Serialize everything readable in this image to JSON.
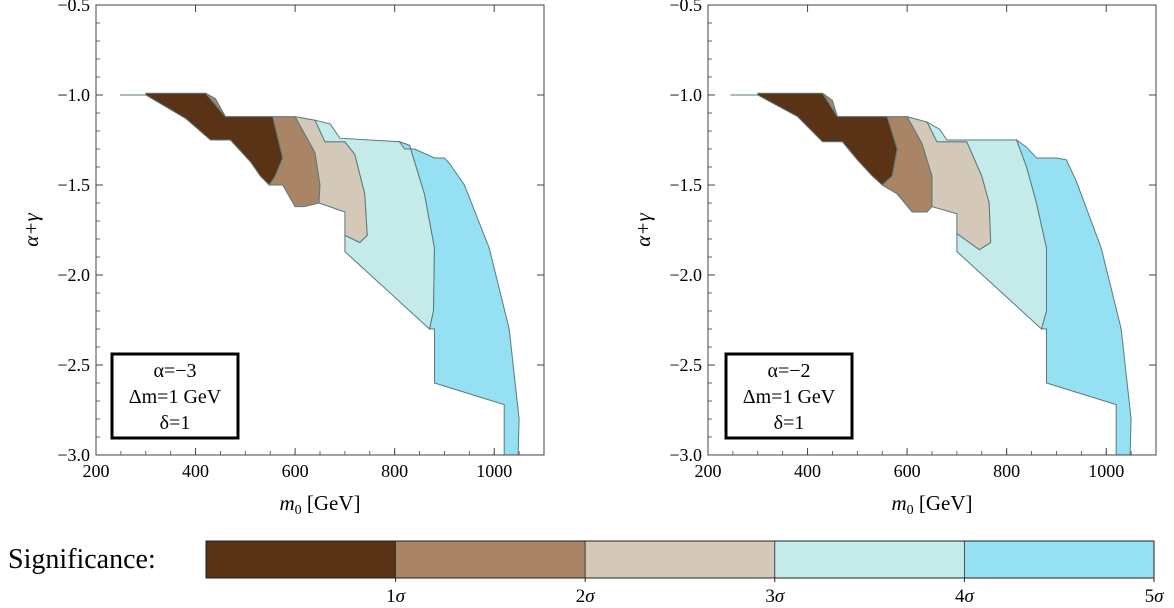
{
  "chart_data": [
    {
      "type": "area",
      "subtype": "contour",
      "xlabel": "m₀ [GeV]",
      "ylabel": "α+γ",
      "xlim": [
        200,
        1100
      ],
      "ylim": [
        -3.0,
        -0.5
      ],
      "xticks": [
        "200",
        "400",
        "600",
        "800",
        "1000"
      ],
      "yticks": [
        "−0.5",
        "−1.0",
        "−1.5",
        "−2.0",
        "−2.5",
        "−3.0"
      ],
      "legend_box": [
        "α=−3",
        "Δm=1 GeV",
        "δ=1"
      ],
      "regions": [
        {
          "level": "0-1σ",
          "color": "#5a3316",
          "points": [
            [
              248,
              -1.0
            ],
            [
              300,
              -1.0
            ],
            [
              300,
              -0.99
            ],
            [
              420,
              -0.99
            ],
            [
              460,
              -1.12
            ],
            [
              555,
              -1.12
            ],
            [
              575,
              -1.35
            ],
            [
              560,
              -1.45
            ],
            [
              548,
              -1.5
            ],
            [
              530,
              -1.45
            ],
            [
              510,
              -1.37
            ],
            [
              470,
              -1.25
            ],
            [
              430,
              -1.25
            ],
            [
              380,
              -1.13
            ],
            [
              300,
              -1.0
            ],
            [
              270,
              -1.0
            ],
            [
              248,
              -1.0
            ]
          ]
        },
        {
          "level": "1-2σ",
          "color": "#a98467",
          "points": [
            [
              420,
              -0.99
            ],
            [
              440,
              -1.02
            ],
            [
              460,
              -1.12
            ],
            [
              600,
              -1.12
            ],
            [
              640,
              -1.32
            ],
            [
              650,
              -1.5
            ],
            [
              648,
              -1.6
            ],
            [
              618,
              -1.62
            ],
            [
              600,
              -1.62
            ],
            [
              575,
              -1.5
            ],
            [
              548,
              -1.5
            ],
            [
              560,
              -1.45
            ],
            [
              575,
              -1.35
            ],
            [
              555,
              -1.12
            ],
            [
              460,
              -1.12
            ],
            [
              420,
              -0.99
            ]
          ]
        },
        {
          "level": "2-3σ",
          "color": "#d4c8b8",
          "points": [
            [
              600,
              -1.12
            ],
            [
              640,
              -1.14
            ],
            [
              660,
              -1.26
            ],
            [
              700,
              -1.26
            ],
            [
              720,
              -1.33
            ],
            [
              740,
              -1.55
            ],
            [
              745,
              -1.78
            ],
            [
              730,
              -1.82
            ],
            [
              700,
              -1.78
            ],
            [
              700,
              -1.65
            ],
            [
              648,
              -1.6
            ],
            [
              650,
              -1.5
            ],
            [
              640,
              -1.32
            ],
            [
              600,
              -1.12
            ]
          ]
        },
        {
          "level": "3-4σ",
          "color": "#c4eaea",
          "points": [
            [
              640,
              -1.14
            ],
            [
              670,
              -1.16
            ],
            [
              690,
              -1.24
            ],
            [
              810,
              -1.26
            ],
            [
              830,
              -1.28
            ],
            [
              860,
              -1.55
            ],
            [
              880,
              -1.85
            ],
            [
              878,
              -2.2
            ],
            [
              870,
              -2.3
            ],
            [
              700,
              -1.87
            ],
            [
              700,
              -1.78
            ],
            [
              730,
              -1.82
            ],
            [
              745,
              -1.78
            ],
            [
              740,
              -1.55
            ],
            [
              720,
              -1.33
            ],
            [
              700,
              -1.26
            ],
            [
              660,
              -1.26
            ],
            [
              640,
              -1.14
            ]
          ]
        },
        {
          "level": "4-5σ",
          "color": "#95e0f2",
          "points": [
            [
              810,
              -1.26
            ],
            [
              820,
              -1.3
            ],
            [
              840,
              -1.3
            ],
            [
              880,
              -1.35
            ],
            [
              900,
              -1.35
            ],
            [
              910,
              -1.38
            ],
            [
              940,
              -1.5
            ],
            [
              990,
              -1.85
            ],
            [
              1030,
              -2.3
            ],
            [
              1050,
              -2.8
            ],
            [
              1048,
              -3.0
            ],
            [
              1020,
              -3.0
            ],
            [
              1020,
              -2.72
            ],
            [
              880,
              -2.6
            ],
            [
              880,
              -2.3
            ],
            [
              870,
              -2.3
            ],
            [
              878,
              -2.2
            ],
            [
              880,
              -1.85
            ],
            [
              860,
              -1.55
            ],
            [
              830,
              -1.28
            ],
            [
              810,
              -1.26
            ]
          ]
        }
      ]
    },
    {
      "type": "area",
      "subtype": "contour",
      "xlabel": "m₀ [GeV]",
      "ylabel": "α+γ",
      "xlim": [
        200,
        1100
      ],
      "ylim": [
        -3.0,
        -0.5
      ],
      "xticks": [
        "200",
        "400",
        "600",
        "800",
        "1000"
      ],
      "yticks": [
        "−0.5",
        "−1.0",
        "−1.5",
        "−2.0",
        "−2.5",
        "−3.0"
      ],
      "legend_box": [
        "α=−2",
        "Δm=1 GeV",
        "δ=1"
      ],
      "regions": [
        {
          "level": "0-1σ",
          "color": "#5a3316",
          "points": [
            [
              245,
              -1.0
            ],
            [
              300,
              -1.0
            ],
            [
              300,
              -0.99
            ],
            [
              430,
              -0.99
            ],
            [
              460,
              -1.12
            ],
            [
              560,
              -1.12
            ],
            [
              580,
              -1.3
            ],
            [
              570,
              -1.45
            ],
            [
              550,
              -1.5
            ],
            [
              530,
              -1.45
            ],
            [
              500,
              -1.36
            ],
            [
              470,
              -1.26
            ],
            [
              430,
              -1.26
            ],
            [
              380,
              -1.12
            ],
            [
              300,
              -1.0
            ],
            [
              245,
              -1.0
            ]
          ]
        },
        {
          "level": "1-2σ",
          "color": "#a98467",
          "points": [
            [
              430,
              -0.99
            ],
            [
              450,
              -1.03
            ],
            [
              460,
              -1.12
            ],
            [
              600,
              -1.12
            ],
            [
              630,
              -1.27
            ],
            [
              650,
              -1.45
            ],
            [
              650,
              -1.62
            ],
            [
              640,
              -1.65
            ],
            [
              610,
              -1.65
            ],
            [
              580,
              -1.55
            ],
            [
              550,
              -1.5
            ],
            [
              570,
              -1.45
            ],
            [
              580,
              -1.3
            ],
            [
              560,
              -1.12
            ],
            [
              460,
              -1.12
            ],
            [
              430,
              -0.99
            ]
          ]
        },
        {
          "level": "2-3σ",
          "color": "#d4c8b8",
          "points": [
            [
              600,
              -1.12
            ],
            [
              640,
              -1.15
            ],
            [
              660,
              -1.26
            ],
            [
              720,
              -1.26
            ],
            [
              750,
              -1.45
            ],
            [
              765,
              -1.6
            ],
            [
              768,
              -1.82
            ],
            [
              745,
              -1.86
            ],
            [
              700,
              -1.77
            ],
            [
              700,
              -1.66
            ],
            [
              650,
              -1.62
            ],
            [
              650,
              -1.45
            ],
            [
              630,
              -1.27
            ],
            [
              600,
              -1.12
            ]
          ]
        },
        {
          "level": "3-4σ",
          "color": "#c4eaea",
          "points": [
            [
              640,
              -1.15
            ],
            [
              665,
              -1.19
            ],
            [
              680,
              -1.25
            ],
            [
              820,
              -1.25
            ],
            [
              840,
              -1.4
            ],
            [
              860,
              -1.6
            ],
            [
              880,
              -1.85
            ],
            [
              880,
              -2.2
            ],
            [
              870,
              -2.3
            ],
            [
              700,
              -1.87
            ],
            [
              700,
              -1.77
            ],
            [
              745,
              -1.86
            ],
            [
              768,
              -1.82
            ],
            [
              765,
              -1.6
            ],
            [
              750,
              -1.45
            ],
            [
              720,
              -1.26
            ],
            [
              660,
              -1.26
            ],
            [
              640,
              -1.15
            ]
          ]
        },
        {
          "level": "4-5σ",
          "color": "#95e0f2",
          "points": [
            [
              820,
              -1.25
            ],
            [
              840,
              -1.29
            ],
            [
              860,
              -1.35
            ],
            [
              900,
              -1.35
            ],
            [
              920,
              -1.36
            ],
            [
              940,
              -1.48
            ],
            [
              990,
              -1.85
            ],
            [
              1030,
              -2.3
            ],
            [
              1050,
              -2.8
            ],
            [
              1048,
              -3.0
            ],
            [
              1020,
              -3.0
            ],
            [
              1020,
              -2.72
            ],
            [
              880,
              -2.6
            ],
            [
              880,
              -2.3
            ],
            [
              870,
              -2.3
            ],
            [
              880,
              -2.2
            ],
            [
              880,
              -1.85
            ],
            [
              860,
              -1.6
            ],
            [
              840,
              -1.4
            ],
            [
              820,
              -1.25
            ]
          ]
        }
      ]
    }
  ],
  "colorbar": {
    "label": "Significance:",
    "colors": [
      "#5a3316",
      "#a98467",
      "#d4c8b8",
      "#c4eaea",
      "#95e0f2"
    ],
    "ticks": [
      "1σ",
      "2σ",
      "3σ",
      "4σ",
      "5σ"
    ]
  }
}
